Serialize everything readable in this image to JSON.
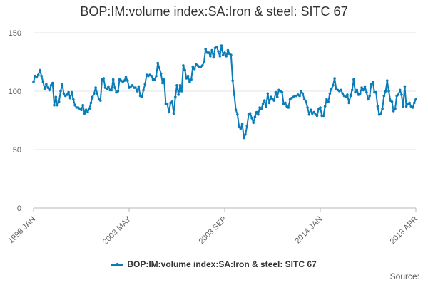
{
  "chart_data": {
    "type": "line",
    "title": "BOP:IM:volume index:SA:Iron & steel: SITC 67",
    "xlabel": "",
    "ylabel": "",
    "ylim": [
      0,
      150
    ],
    "yticks": [
      0,
      50,
      100,
      150
    ],
    "x_tick_labels": [
      "1998 JAN",
      "2003 MAY",
      "2008 SEP",
      "2014 JAN",
      "2018 APR"
    ],
    "grid": true,
    "legend": "bottom-center",
    "series": [
      {
        "name": "BOP:IM:volume index:SA:Iron & steel: SITC 67",
        "color": "#0a7cb8",
        "x_range": [
          "1998 JAN",
          "2018 APR"
        ],
        "values": [
          108,
          113,
          112,
          114,
          118,
          113,
          108,
          102,
          106,
          103,
          101,
          105,
          107,
          88,
          95,
          88,
          91,
          100,
          106,
          98,
          96,
          97,
          99,
          94,
          99,
          93,
          88,
          86,
          86,
          85,
          84,
          88,
          81,
          84,
          82,
          85,
          90,
          95,
          98,
          103,
          98,
          93,
          92,
          110,
          111,
          103,
          102,
          104,
          101,
          101,
          110,
          103,
          99,
          100,
          110,
          109,
          108,
          109,
          112,
          109,
          103,
          104,
          105,
          103,
          103,
          100,
          104,
          96,
          95,
          101,
          106,
          114,
          113,
          114,
          113,
          110,
          110,
          113,
          124,
          120,
          115,
          107,
          110,
          89,
          89,
          82,
          90,
          91,
          81,
          95,
          105,
          97,
          105,
          100,
          122,
          118,
          111,
          113,
          108,
          110,
          121,
          119,
          123,
          122,
          121,
          121,
          122,
          125,
          136,
          133,
          133,
          130,
          135,
          129,
          137,
          138,
          134,
          130,
          139,
          131,
          133,
          130,
          135,
          132,
          131,
          109,
          97,
          84,
          80,
          70,
          68,
          72,
          60,
          63,
          70,
          80,
          81,
          77,
          73,
          78,
          82,
          80,
          86,
          85,
          89,
          92,
          87,
          98,
          90,
          95,
          93,
          92,
          99,
          95,
          101,
          100,
          99,
          89,
          90,
          87,
          86,
          93,
          94,
          95,
          96,
          96,
          97,
          96,
          100,
          98,
          93,
          91,
          86,
          80,
          84,
          81,
          82,
          80,
          79,
          85,
          86,
          79,
          79,
          87,
          93,
          91,
          98,
          102,
          105,
          111,
          102,
          101,
          100,
          101,
          98,
          96,
          95,
          97,
          90,
          96,
          101,
          110,
          99,
          101,
          97,
          98,
          103,
          101,
          104,
          99,
          93,
          96,
          106,
          108,
          99,
          99,
          87,
          80,
          81,
          85,
          96,
          100,
          109,
          100,
          92,
          91,
          83,
          85,
          96,
          97,
          101,
          97,
          87,
          104,
          87,
          89,
          90,
          87,
          86,
          90,
          93
        ]
      }
    ]
  },
  "legend": {
    "label": "BOP:IM:volume index:SA:Iron & steel: SITC 67"
  },
  "footer": {
    "source": "Source:"
  }
}
